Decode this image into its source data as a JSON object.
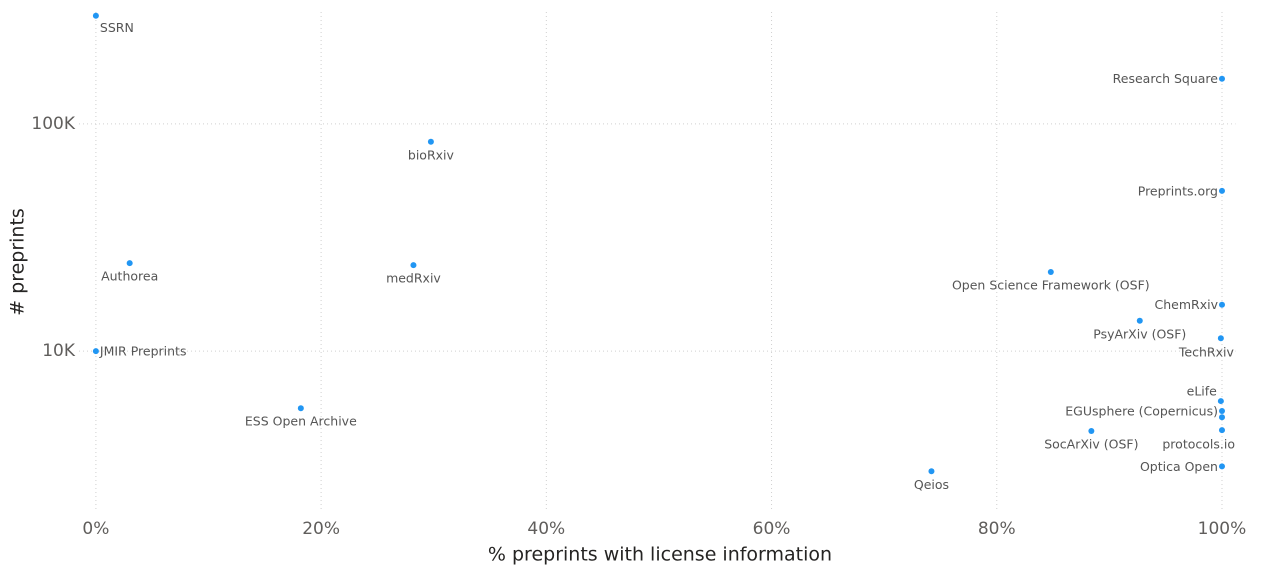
{
  "chart_data": {
    "type": "scatter",
    "x_label": "% preprints with license information",
    "y_label": "# preprints",
    "point_labels": [
      "SSRN",
      "Research Square",
      "bioRxiv",
      "Preprints.org",
      "Authorea",
      "medRxiv",
      "Open Science Framework (OSF)",
      "ChemRxiv",
      "PsyArXiv (OSF)",
      "TechRxiv",
      "JMIR Preprints",
      "eLife",
      "ESS Open Archive",
      "EGUsphere (Copernicus)",
      null,
      "protocols.io",
      "SocArXiv (OSF)",
      "Qeios",
      "Optica Open"
    ],
    "x": [
      0,
      100,
      29.75,
      100,
      3,
      28.2,
      84.8,
      100,
      92.7,
      99.9,
      0,
      99.9,
      18.2,
      100,
      100,
      100,
      88.4,
      74.2,
      100
    ],
    "series": [
      {
        "color": "#2196f3",
        "values": [
          299000,
          158000,
          83400,
          50700,
          24400,
          23900,
          22300,
          16000,
          13600,
          11400,
          10000,
          6030,
          5610,
          5450,
          5120,
          4490,
          4450,
          2960,
          3110
        ]
      }
    ],
    "xlim": [
      -1.5,
      101.2
    ],
    "xticks": [
      {
        "value": 0,
        "label": "0%"
      },
      {
        "value": 20,
        "label": "20%"
      },
      {
        "value": 40,
        "label": "40%"
      },
      {
        "value": 60,
        "label": "60%"
      },
      {
        "value": 80,
        "label": "80%"
      },
      {
        "value": 100,
        "label": "100%"
      }
    ],
    "ylim": [
      2000,
      330000
    ],
    "yticks": [
      {
        "value": 10000,
        "label": "10K"
      },
      {
        "value": 100000,
        "label": "100K"
      }
    ],
    "y_log": true,
    "grid": true
  }
}
